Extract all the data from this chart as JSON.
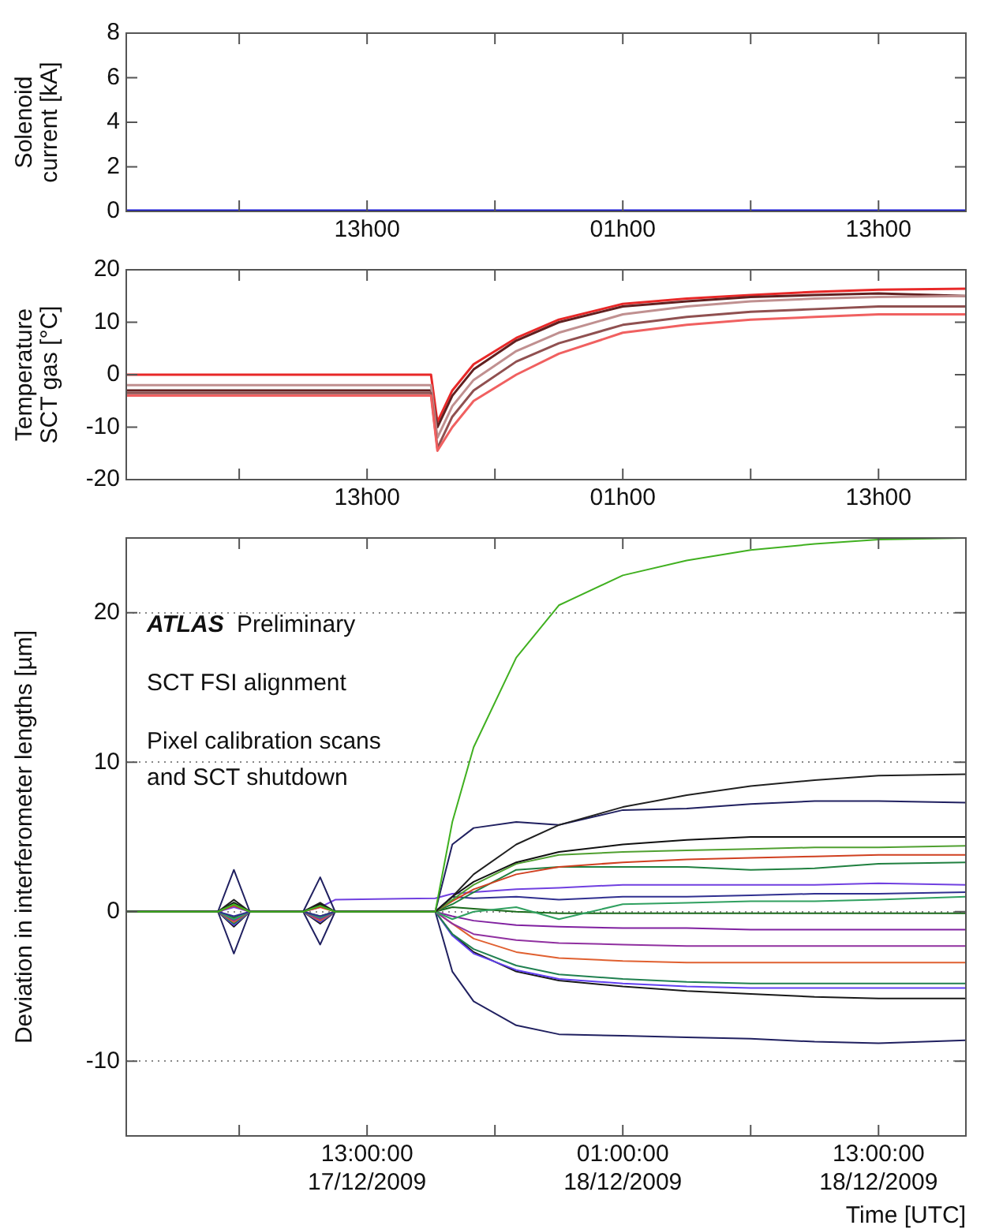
{
  "chart_data": [
    {
      "type": "line",
      "ylabel": "Solenoid\ncurrent [kA]",
      "x": [
        "2009-12-17T01:42",
        "2009-12-18T17:06"
      ],
      "xlim": [
        "2009-12-17T01:42",
        "2009-12-18T17:06"
      ],
      "xticks": [
        {
          "value": "2009-12-17T07:00",
          "label": null
        },
        {
          "value": "2009-12-17T13:00",
          "label": "13h00"
        },
        {
          "value": "2009-12-17T19:00",
          "label": null
        },
        {
          "value": "2009-12-18T01:00",
          "label": "01h00"
        },
        {
          "value": "2009-12-18T07:00",
          "label": null
        },
        {
          "value": "2009-12-18T13:00",
          "label": "13h00"
        }
      ],
      "ylim": [
        0,
        8
      ],
      "yticks": [
        0,
        2,
        4,
        6,
        8
      ],
      "grid": false,
      "legend": false,
      "marker": "none",
      "line_style": "solid",
      "series": [
        {
          "color": "#1010d0",
          "values": [
            0,
            0
          ]
        }
      ]
    },
    {
      "type": "line",
      "ylabel": "Temperature\nSCT gas [°C]",
      "x": [
        "2009-12-17T01:42",
        "2009-12-17T16:00",
        "2009-12-17T16:18",
        "2009-12-17T17:00",
        "2009-12-17T18:00",
        "2009-12-17T20:00",
        "2009-12-17T22:00",
        "2009-12-18T01:00",
        "2009-12-18T04:00",
        "2009-12-18T07:00",
        "2009-12-18T10:00",
        "2009-12-18T13:00",
        "2009-12-18T17:06"
      ],
      "xlim": [
        "2009-12-17T01:42",
        "2009-12-18T17:06"
      ],
      "xticks": [
        {
          "value": "2009-12-17T07:00",
          "label": null
        },
        {
          "value": "2009-12-17T13:00",
          "label": "13h00"
        },
        {
          "value": "2009-12-17T19:00",
          "label": null
        },
        {
          "value": "2009-12-18T01:00",
          "label": "01h00"
        },
        {
          "value": "2009-12-18T07:00",
          "label": null
        },
        {
          "value": "2009-12-18T13:00",
          "label": "13h00"
        }
      ],
      "ylim": [
        -20,
        20
      ],
      "yticks": [
        -20,
        -10,
        0,
        10,
        20
      ],
      "grid": false,
      "legend": false,
      "marker": "none",
      "line_style": "solid",
      "series": [
        {
          "color": "#f06060",
          "values": [
            -4,
            -4,
            -14.5,
            -10,
            -5,
            0,
            4,
            8,
            9.5,
            10.5,
            11,
            11.5,
            11.5
          ]
        },
        {
          "color": "#905050",
          "values": [
            -3.5,
            -3.5,
            -14,
            -8,
            -3,
            2.5,
            6,
            9.5,
            11,
            12,
            12.5,
            13,
            13
          ]
        },
        {
          "color": "#c09090",
          "values": [
            -2,
            -2,
            -12,
            -6,
            -1,
            4.5,
            8,
            11.5,
            13,
            14,
            14.5,
            14.8,
            15
          ]
        },
        {
          "color": "#602020",
          "values": [
            -3,
            -3,
            -10,
            -4,
            1,
            6.5,
            10,
            13,
            14,
            14.8,
            15.2,
            15.5,
            15
          ]
        },
        {
          "color": "#e82828",
          "values": [
            0,
            0,
            -9,
            -3,
            2,
            7,
            10.5,
            13.5,
            14.5,
            15.2,
            15.8,
            16.2,
            16.4
          ]
        }
      ]
    },
    {
      "type": "line",
      "xlabel": "Time [UTC]",
      "ylabel": "Deviation in interferometer lengths [µm]",
      "annotations": [
        "ATLAS Preliminary",
        "SCT FSI alignment",
        "Pixel calibration scans\nand SCT shutdown"
      ],
      "x": [
        "2009-12-17T01:42",
        "2009-12-17T06:00",
        "2009-12-17T06:45",
        "2009-12-17T07:30",
        "2009-12-17T10:00",
        "2009-12-17T10:48",
        "2009-12-17T11:30",
        "2009-12-17T16:12",
        "2009-12-17T17:00",
        "2009-12-17T18:00",
        "2009-12-17T20:00",
        "2009-12-17T22:00",
        "2009-12-18T01:00",
        "2009-12-18T04:00",
        "2009-12-18T07:00",
        "2009-12-18T10:00",
        "2009-12-18T13:00",
        "2009-12-18T17:06"
      ],
      "xlim": [
        "2009-12-17T01:42",
        "2009-12-18T17:06"
      ],
      "xticks": [
        {
          "value": "2009-12-17T07:00",
          "label": null
        },
        {
          "value": "2009-12-17T13:00",
          "label": "13:00:00\n17/12/2009"
        },
        {
          "value": "2009-12-17T19:00",
          "label": null
        },
        {
          "value": "2009-12-18T01:00",
          "label": "01:00:00\n18/12/2009"
        },
        {
          "value": "2009-12-18T07:00",
          "label": null
        },
        {
          "value": "2009-12-18T13:00",
          "label": "13:00:00\n18/12/2009"
        }
      ],
      "ylim": [
        -15,
        25
      ],
      "yticks": [
        -10,
        0,
        10,
        20
      ],
      "grid": "y",
      "legend": false,
      "marker": "none",
      "line_style": "solid",
      "series": [
        {
          "color": "#40b020",
          "values": [
            0,
            0,
            0.5,
            0,
            0,
            0.4,
            0,
            0,
            6,
            11,
            17,
            20.5,
            22.5,
            23.5,
            24.2,
            24.6,
            24.9,
            25
          ]
        },
        {
          "color": "#202020",
          "values": [
            0,
            0,
            0.8,
            0,
            0,
            0.6,
            0,
            0,
            1,
            2.5,
            4.5,
            5.8,
            7,
            7.8,
            8.4,
            8.8,
            9.1,
            9.2
          ]
        },
        {
          "color": "#202060",
          "values": [
            0,
            0,
            2.8,
            0,
            0,
            2.3,
            0,
            0,
            4.5,
            5.6,
            6,
            5.8,
            6.8,
            6.9,
            7.2,
            7.4,
            7.4,
            7.3
          ]
        },
        {
          "color": "#101010",
          "values": [
            0,
            0,
            0.6,
            0,
            0,
            0.5,
            0,
            0,
            1,
            2,
            3.3,
            4,
            4.5,
            4.8,
            5,
            5,
            5,
            5
          ]
        },
        {
          "color": "#50a030",
          "values": [
            0,
            0,
            0.5,
            0,
            0,
            0.4,
            0,
            0,
            0.8,
            1.8,
            3.2,
            3.8,
            4,
            4.1,
            4.2,
            4.3,
            4.3,
            4.4
          ]
        },
        {
          "color": "#d04020",
          "values": [
            0,
            0,
            0.4,
            0,
            0,
            0.3,
            0,
            0,
            0.7,
            1.5,
            2.5,
            3,
            3.3,
            3.5,
            3.6,
            3.7,
            3.8,
            3.8
          ]
        },
        {
          "color": "#208040",
          "values": [
            0,
            0,
            0.6,
            0,
            0,
            0.5,
            0,
            0,
            0.5,
            1.3,
            2.8,
            3,
            3,
            3,
            2.8,
            2.9,
            3.2,
            3.3
          ]
        },
        {
          "color": "#7040e0",
          "values": [
            0,
            0,
            0.3,
            0,
            0,
            0.3,
            0.8,
            0.9,
            1.2,
            1.3,
            1.5,
            1.6,
            1.8,
            1.8,
            1.8,
            1.8,
            1.9,
            1.8
          ]
        },
        {
          "color": "#303090",
          "values": [
            0,
            0,
            -0.3,
            0,
            0,
            -0.3,
            0,
            0,
            1,
            0.9,
            1,
            0.8,
            1,
            1,
            1.1,
            1.2,
            1.2,
            1.3
          ]
        },
        {
          "color": "#30a060",
          "values": [
            0,
            0,
            -0.5,
            0,
            0,
            -0.4,
            0,
            0,
            -0.5,
            0,
            0.3,
            -0.5,
            0.5,
            0.6,
            0.7,
            0.7,
            0.8,
            1
          ]
        },
        {
          "color": "#1a6a1a",
          "values": [
            0,
            0,
            -0.4,
            0,
            0,
            -0.3,
            0,
            0,
            0.3,
            0.2,
            0,
            -0.1,
            -0.1,
            -0.1,
            -0.1,
            -0.1,
            -0.1,
            -0.1
          ]
        },
        {
          "color": "#8020a0",
          "values": [
            0,
            0,
            -0.5,
            0,
            0,
            -0.4,
            0,
            0,
            -0.3,
            -0.6,
            -0.9,
            -1,
            -1.1,
            -1.1,
            -1.2,
            -1.2,
            -1.2,
            -1.2
          ]
        },
        {
          "color": "#9030a0",
          "values": [
            0,
            0,
            -0.6,
            0,
            0,
            -0.5,
            0,
            0,
            -0.8,
            -1.5,
            -1.9,
            -2.1,
            -2.2,
            -2.3,
            -2.3,
            -2.3,
            -2.3,
            -2.3
          ]
        },
        {
          "color": "#e06030",
          "values": [
            0,
            0,
            -0.7,
            0,
            0,
            -0.6,
            0,
            0,
            -0.8,
            -1.8,
            -2.7,
            -3.1,
            -3.3,
            -3.4,
            -3.4,
            -3.4,
            -3.4,
            -3.4
          ]
        },
        {
          "color": "#208050",
          "values": [
            0,
            0,
            -0.8,
            0,
            0,
            -0.6,
            0,
            0,
            -1.5,
            -2.5,
            -3.6,
            -4.2,
            -4.5,
            -4.7,
            -4.8,
            -4.8,
            -4.8,
            -4.8
          ]
        },
        {
          "color": "#6040f0",
          "values": [
            0,
            0,
            -0.9,
            0,
            0,
            -0.7,
            0,
            0,
            -1.6,
            -2.8,
            -3.9,
            -4.5,
            -4.8,
            -5,
            -5.1,
            -5.1,
            -5.1,
            -5.1
          ]
        },
        {
          "color": "#181818",
          "values": [
            0,
            0,
            -1,
            0,
            0,
            -0.8,
            0,
            0,
            -1.5,
            -2.7,
            -4,
            -4.6,
            -5,
            -5.3,
            -5.5,
            -5.7,
            -5.8,
            -5.8
          ]
        },
        {
          "color": "#202060",
          "values": [
            0,
            0,
            -2.8,
            0,
            0,
            -2.2,
            0,
            0,
            -4,
            -6,
            -7.6,
            -8.2,
            -8.3,
            -8.4,
            -8.5,
            -8.7,
            -8.8,
            -8.6
          ]
        }
      ]
    }
  ]
}
